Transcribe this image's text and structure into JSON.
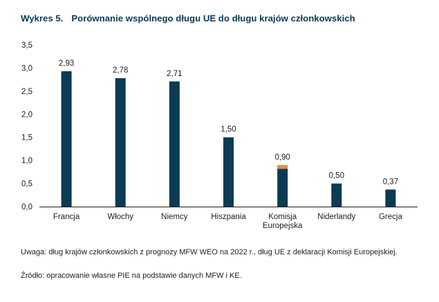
{
  "title": {
    "number": "Wykres 5.",
    "text": "Porównanie wspólnego długu UE do długu krajów członkowskich"
  },
  "chart_data": {
    "type": "bar",
    "stacked": true,
    "categories": [
      "Francja",
      "Włochy",
      "Niemcy",
      "Hiszpania",
      "Komisja Europejska",
      "Niderlandy",
      "Grecja"
    ],
    "category_lines": [
      [
        "Francja"
      ],
      [
        "Włochy"
      ],
      [
        "Niemcy"
      ],
      [
        "Hiszpania"
      ],
      [
        "Komisja",
        "Europejska"
      ],
      [
        "Niderlandy"
      ],
      [
        "Grecja"
      ]
    ],
    "series": [
      {
        "values": [
          2.93,
          2.78,
          2.71,
          1.5,
          0.82,
          0.5,
          0.37
        ],
        "color": "#0b3b55"
      },
      {
        "values": [
          0,
          0,
          0,
          0,
          0.08,
          0,
          0
        ],
        "color": "#f08a3c"
      }
    ],
    "data_labels": [
      "2,93",
      "2,78",
      "2,71",
      "1,50",
      "0,90",
      "0,50",
      "0,37"
    ],
    "ylim": [
      0,
      3.5
    ],
    "yticks": [
      0,
      0.5,
      1.0,
      1.5,
      2.0,
      2.5,
      3.0,
      3.5
    ],
    "ytick_labels": [
      "0,0",
      "0,5",
      "1,0",
      "1,5",
      "2,0",
      "2,5",
      "3,0",
      "3,5"
    ],
    "grid": false,
    "legend": "none"
  },
  "notes": {
    "uwaga": "Uwaga: dług krajów członkowskich z prognozy MFW WEO na 2022 r., dług UE z deklaracji Komisji Europejskiej.",
    "zrodlo": "Źródło: opracowanie własne PIE na podstawie danych MFW i KE."
  }
}
